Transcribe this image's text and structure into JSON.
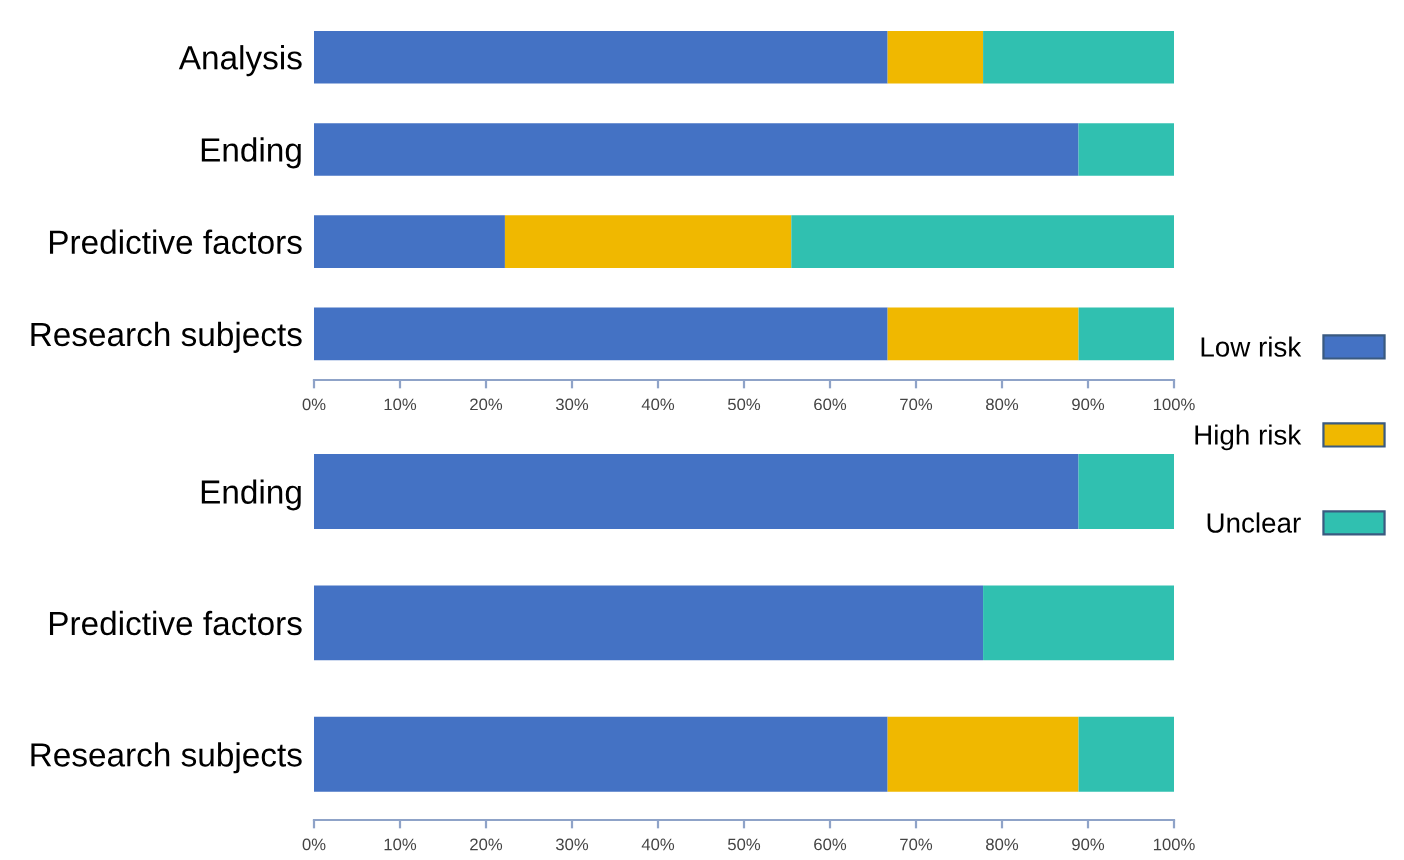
{
  "chart_data": [
    {
      "type": "bar",
      "orientation": "horizontal",
      "stacked": true,
      "legend": "right",
      "categories": [
        "Analysis",
        "Ending",
        "Predictive factors",
        "Research subjects"
      ],
      "series": [
        {
          "name": "Low risk",
          "color": "#4472c4",
          "values": [
            66.7,
            88.9,
            22.2,
            66.7
          ]
        },
        {
          "name": "High risk",
          "color": "#f0b800",
          "values": [
            11.1,
            0,
            33.3,
            22.2
          ]
        },
        {
          "name": "Unclear",
          "color": "#30c0b0",
          "values": [
            22.2,
            11.1,
            44.5,
            11.1
          ]
        }
      ],
      "xlim": [
        0,
        100
      ],
      "xticks": [
        {
          "value": 0,
          "label": "0%"
        },
        {
          "value": 10,
          "label": "10%"
        },
        {
          "value": 20,
          "label": "20%"
        },
        {
          "value": 30,
          "label": "30%"
        },
        {
          "value": 40,
          "label": "40%"
        },
        {
          "value": 50,
          "label": "50%"
        },
        {
          "value": 60,
          "label": "60%"
        },
        {
          "value": 70,
          "label": "70%"
        },
        {
          "value": 80,
          "label": "80%"
        },
        {
          "value": 90,
          "label": "90%"
        },
        {
          "value": 100,
          "label": "100%"
        }
      ]
    },
    {
      "type": "bar",
      "orientation": "horizontal",
      "stacked": true,
      "categories": [
        "Ending",
        "Predictive factors",
        "Research subjects"
      ],
      "series": [
        {
          "color": "#4472c4",
          "values": [
            88.9,
            77.8,
            66.7
          ]
        },
        {
          "color": "#f0b800",
          "values": [
            0,
            0,
            22.2
          ]
        },
        {
          "color": "#30c0b0",
          "values": [
            11.1,
            22.2,
            11.1
          ]
        }
      ],
      "xlim": [
        0,
        100
      ],
      "xticks": [
        {
          "value": 0,
          "label": "0%"
        },
        {
          "value": 10,
          "label": "10%"
        },
        {
          "value": 20,
          "label": "20%"
        },
        {
          "value": 30,
          "label": "30%"
        },
        {
          "value": 40,
          "label": "40%"
        },
        {
          "value": 50,
          "label": "50%"
        },
        {
          "value": 60,
          "label": "60%"
        },
        {
          "value": 70,
          "label": "70%"
        },
        {
          "value": 80,
          "label": "80%"
        },
        {
          "value": 90,
          "label": "90%"
        },
        {
          "value": 100,
          "label": "100%"
        }
      ]
    }
  ]
}
